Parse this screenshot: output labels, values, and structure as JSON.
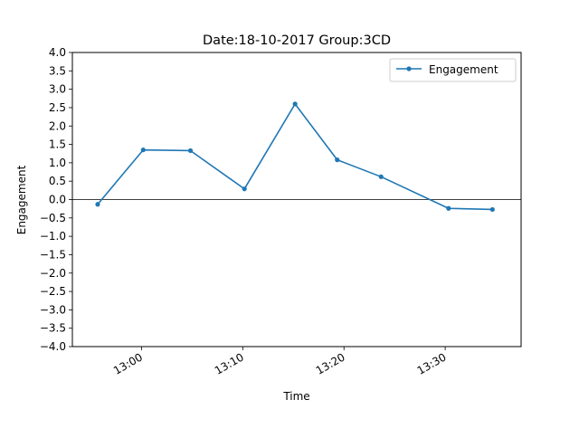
{
  "chart_data": {
    "type": "line",
    "title": "Date:18-10-2017 Group:3CD",
    "xlabel": "Time",
    "ylabel": "Engagement",
    "ylim": [
      -4.0,
      4.0
    ],
    "xlim": [
      "12:53:10",
      "13:37:30"
    ],
    "yticks": [
      "4.0",
      "3.5",
      "3.0",
      "2.5",
      "2.0",
      "1.5",
      "1.0",
      "0.5",
      "0.0",
      "-0.5",
      "-1.0",
      "-1.5",
      "-2.0",
      "-2.5",
      "-3.0",
      "-3.5",
      "-4.0"
    ],
    "xticks": [
      "13:00",
      "13:10",
      "13:20",
      "13:30"
    ],
    "legend": "top-right",
    "grid": false,
    "zero_line": true,
    "series": [
      {
        "name": "Engagement",
        "color": "#1f77b4",
        "marker": "circle",
        "x": [
          "12:55:40",
          "13:00:10",
          "13:04:50",
          "13:10:10",
          "13:15:10",
          "13:19:20",
          "13:23:40",
          "13:30:20",
          "13:34:40"
        ],
        "values": [
          -0.13,
          1.35,
          1.33,
          0.29,
          2.6,
          1.08,
          0.62,
          -0.24,
          -0.27
        ]
      }
    ]
  }
}
